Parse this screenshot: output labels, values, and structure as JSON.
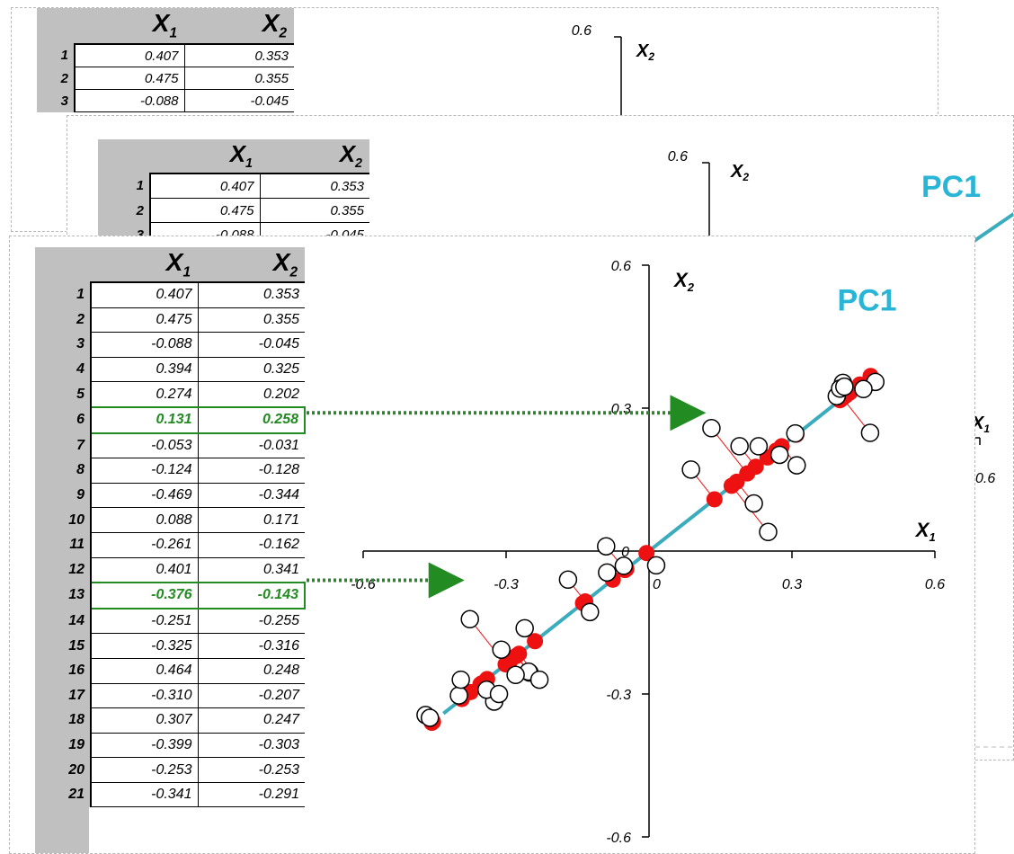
{
  "table": {
    "headers": [
      "X1",
      "X2"
    ],
    "rows": [
      {
        "id": "1",
        "x1": "0.407",
        "x2": "0.353"
      },
      {
        "id": "2",
        "x1": "0.475",
        "x2": "0.355"
      },
      {
        "id": "3",
        "x1": "-0.088",
        "x2": "-0.045"
      },
      {
        "id": "4",
        "x1": "0.394",
        "x2": "0.325"
      },
      {
        "id": "5",
        "x1": "0.274",
        "x2": "0.202"
      },
      {
        "id": "6",
        "x1": "0.131",
        "x2": "0.258"
      },
      {
        "id": "7",
        "x1": "-0.053",
        "x2": "-0.031"
      },
      {
        "id": "8",
        "x1": "-0.124",
        "x2": "-0.128"
      },
      {
        "id": "9",
        "x1": "-0.469",
        "x2": "-0.344"
      },
      {
        "id": "10",
        "x1": "0.088",
        "x2": "0.171"
      },
      {
        "id": "11",
        "x1": "-0.261",
        "x2": "-0.162"
      },
      {
        "id": "12",
        "x1": "0.401",
        "x2": "0.341"
      },
      {
        "id": "13",
        "x1": "-0.376",
        "x2": "-0.143"
      },
      {
        "id": "14",
        "x1": "-0.251",
        "x2": "-0.255"
      },
      {
        "id": "15",
        "x1": "-0.325",
        "x2": "-0.316"
      },
      {
        "id": "16",
        "x1": "0.464",
        "x2": "0.248"
      },
      {
        "id": "17",
        "x1": "-0.310",
        "x2": "-0.207"
      },
      {
        "id": "18",
        "x1": "0.307",
        "x2": "0.247"
      },
      {
        "id": "19",
        "x1": "-0.399",
        "x2": "-0.303"
      },
      {
        "id": "20",
        "x1": "-0.253",
        "x2": "-0.253"
      },
      {
        "id": "21",
        "x1": "-0.341",
        "x2": "-0.291"
      }
    ],
    "highlighted_rows": [
      "6",
      "13"
    ],
    "highlight_color": "#228b22"
  },
  "chart_data": {
    "type": "scatter",
    "title": "",
    "xlabel": "X1",
    "ylabel": "X2",
    "xlim": [
      -0.6,
      0.6
    ],
    "ylim": [
      -0.6,
      0.6
    ],
    "xticks": [
      "-0.6",
      "-0.3",
      "0",
      "0.3",
      "0.6"
    ],
    "yticks": [
      "0.6",
      "0.3",
      "0",
      "-0.3",
      "-0.6"
    ],
    "pc_label": "PC1",
    "pc_direction": [
      0.7846,
      0.62
    ],
    "colors": {
      "pc_line": "#3aacbd",
      "pc_label": "#29b5d6",
      "projection": "#ee1111",
      "observation_fill": "#ffffff"
    },
    "series": [
      {
        "name": "",
        "x": [
          0.407,
          0.475,
          -0.088,
          0.394,
          0.274,
          0.131,
          -0.053,
          -0.124,
          -0.469,
          0.088,
          -0.261,
          0.401,
          -0.376,
          -0.251,
          -0.325,
          0.464,
          -0.31,
          0.307,
          -0.399,
          -0.253,
          -0.341,
          0.23,
          0.25,
          0.22,
          0.45,
          0.31,
          0.41,
          0.015,
          -0.17,
          -0.09,
          -0.46,
          -0.395,
          -0.23,
          -0.28,
          -0.315,
          0.19
        ],
        "y": [
          0.353,
          0.355,
          -0.045,
          0.325,
          0.202,
          0.258,
          -0.031,
          -0.128,
          -0.344,
          0.171,
          -0.162,
          0.341,
          -0.143,
          -0.255,
          -0.316,
          0.248,
          -0.207,
          0.247,
          -0.303,
          -0.253,
          -0.291,
          0.22,
          0.04,
          0.1,
          0.34,
          0.18,
          0.345,
          -0.03,
          -0.06,
          0.01,
          -0.35,
          -0.27,
          -0.27,
          -0.26,
          -0.3,
          0.22
        ]
      }
    ]
  }
}
